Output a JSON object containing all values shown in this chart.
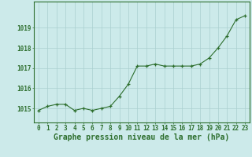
{
  "hours": [
    0,
    1,
    2,
    3,
    4,
    5,
    6,
    7,
    8,
    9,
    10,
    11,
    12,
    13,
    14,
    15,
    16,
    17,
    18,
    19,
    20,
    21,
    22,
    23
  ],
  "pressure": [
    1014.9,
    1015.1,
    1015.2,
    1015.2,
    1014.9,
    1015.0,
    1014.9,
    1015.0,
    1015.1,
    1015.6,
    1016.2,
    1017.1,
    1017.1,
    1017.2,
    1017.1,
    1017.1,
    1017.1,
    1017.1,
    1017.2,
    1017.5,
    1018.0,
    1018.6,
    1019.4,
    1019.6
  ],
  "line_color": "#2d6e2d",
  "marker": "+",
  "bg_color": "#cceaea",
  "grid_color": "#aacfcf",
  "axis_color": "#2d6e2d",
  "tick_color": "#2d6e2d",
  "label_color": "#2d6e2d",
  "xlabel": "Graphe pression niveau de la mer (hPa)",
  "ylim_min": 1014.3,
  "ylim_max": 1020.3,
  "yticks": [
    1015,
    1016,
    1017,
    1018,
    1019
  ],
  "xticks": [
    0,
    1,
    2,
    3,
    4,
    5,
    6,
    7,
    8,
    9,
    10,
    11,
    12,
    13,
    14,
    15,
    16,
    17,
    18,
    19,
    20,
    21,
    22,
    23
  ],
  "tick_fontsize": 5.5,
  "label_fontsize": 7.0,
  "linewidth": 0.8,
  "markersize": 3.5,
  "markeredgewidth": 0.9
}
